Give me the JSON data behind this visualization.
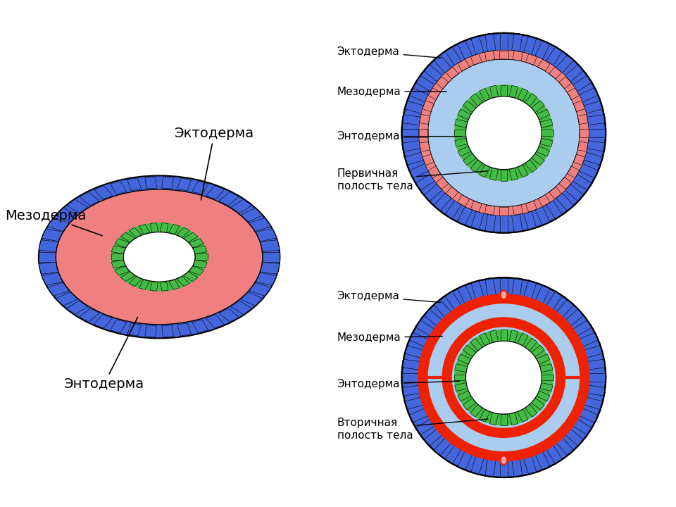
{
  "bg_color": "#ffffff",
  "blue_outer": "#4466dd",
  "pink_meso": "#f08080",
  "light_blue_cavity": "#aaccee",
  "green_ento": "#44bb44",
  "red_meso2": "#ee2200",
  "pink_node": "#f4a0a0",
  "white": "#ffffff",
  "black": "#000000",
  "label1_ecto": "Эктодерма",
  "label1_meso": "Мезодерма",
  "label1_ento": "Энтодерма",
  "label1_cavity": "Первичная\nполость тела",
  "label2_cavity": "Вторичная\nполость тела",
  "label_ecto_flat": "Эктодерма",
  "label_meso_flat": "Мезодерма",
  "label_ento_flat": "Энтодерма"
}
